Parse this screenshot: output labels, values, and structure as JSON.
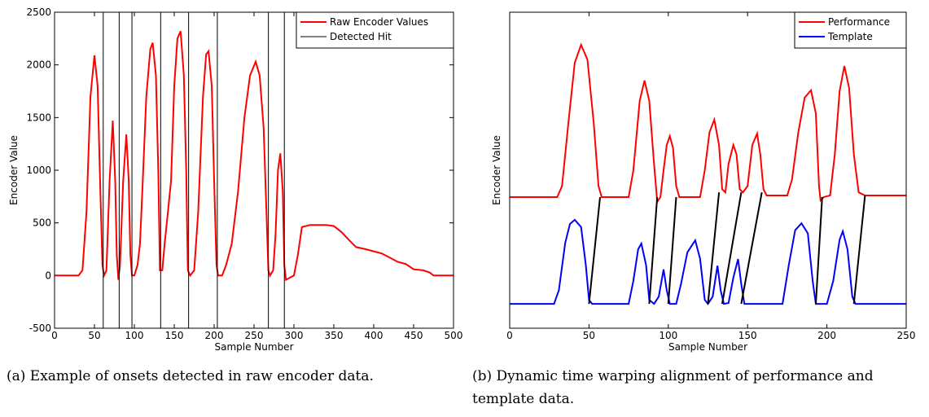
{
  "chart_data": [
    {
      "type": "line",
      "x_label": "Sample Number",
      "y_label": "Encoder Value",
      "caption": "(a) Example of onsets detected in raw encoder data.",
      "xlim": [
        0,
        500
      ],
      "xticks": [
        0,
        50,
        100,
        150,
        200,
        250,
        300,
        350,
        400,
        450,
        500
      ],
      "ylim": [
        -500,
        2500
      ],
      "yticks": [
        -500,
        0,
        500,
        1000,
        1500,
        2000,
        2500
      ],
      "legend": "top-right",
      "series": [
        {
          "name": "Raw Encoder Values",
          "color": "#ff0000",
          "kind": "line",
          "x": [
            0,
            30,
            35,
            40,
            45,
            50,
            54,
            57,
            60,
            62,
            65,
            69,
            73,
            76,
            78,
            80,
            82,
            86,
            90,
            93,
            95,
            97,
            100,
            104,
            107,
            110,
            115,
            120,
            123,
            127,
            130,
            132,
            135,
            138,
            142,
            146,
            150,
            154,
            158,
            162,
            165,
            167,
            170,
            175,
            180,
            186,
            190,
            193,
            197,
            200,
            203,
            205,
            210,
            215,
            222,
            230,
            238,
            245,
            252,
            257,
            262,
            266,
            268,
            270,
            274,
            277,
            280,
            283,
            286,
            288,
            290,
            295,
            300,
            305,
            310,
            320,
            340,
            350,
            360,
            370,
            378,
            390,
            400,
            410,
            420,
            430,
            440,
            450,
            462,
            470,
            475,
            500
          ],
          "values": [
            0,
            0,
            50,
            600,
            1700,
            2090,
            1800,
            900,
            100,
            0,
            50,
            900,
            1470,
            900,
            200,
            -40,
            100,
            900,
            1340,
            900,
            200,
            0,
            0,
            100,
            300,
            800,
            1700,
            2150,
            2210,
            1900,
            1000,
            50,
            50,
            300,
            600,
            900,
            1800,
            2250,
            2320,
            1900,
            1000,
            50,
            0,
            50,
            600,
            1700,
            2100,
            2130,
            1800,
            900,
            100,
            0,
            0,
            100,
            300,
            800,
            1500,
            1900,
            2030,
            1900,
            1400,
            500,
            50,
            0,
            50,
            400,
            1000,
            1160,
            800,
            100,
            -40,
            -20,
            0,
            200,
            460,
            480,
            480,
            470,
            410,
            330,
            270,
            250,
            230,
            210,
            170,
            130,
            110,
            60,
            50,
            30,
            0,
            0
          ]
        },
        {
          "name": "Detected Hit",
          "color": "#000000",
          "kind": "vline",
          "x": [
            61,
            81,
            97,
            133,
            168,
            204,
            268,
            288
          ]
        }
      ]
    },
    {
      "type": "line",
      "x_label": "Sample Number",
      "y_label": "Encoder Value",
      "caption": "(b) Dynamic time warping alignment of performance and template data.",
      "xlim": [
        0,
        250
      ],
      "xticks": [
        0,
        50,
        100,
        150,
        200,
        250
      ],
      "ylim": [
        0,
        100
      ],
      "legend": "top-right",
      "series": [
        {
          "name": "Performance",
          "color": "#ff0000",
          "kind": "line",
          "x": [
            0,
            30,
            33,
            37,
            41,
            45,
            49,
            53,
            56,
            58,
            75,
            78,
            82,
            85,
            88,
            91,
            93,
            95,
            97,
            99,
            101,
            103,
            105,
            107,
            120,
            123,
            126,
            129,
            132,
            134,
            136,
            138,
            141,
            143,
            145,
            147,
            150,
            153,
            156,
            158,
            160,
            162,
            175,
            178,
            182,
            186,
            190,
            193,
            195,
            196,
            198,
            202,
            205,
            208,
            211,
            214,
            217,
            220,
            224,
            250
          ],
          "values": [
            41.5,
            41.5,
            45,
            65,
            84,
            89.7,
            85,
            65,
            45,
            41.5,
            41.5,
            50,
            72,
            78.4,
            72,
            52,
            40,
            41.5,
            50,
            58,
            60.8,
            57,
            45,
            41.5,
            41.5,
            50,
            62,
            66,
            58,
            44,
            43,
            52,
            58,
            55,
            44,
            43,
            45,
            58,
            61.6,
            55,
            44,
            42,
            42,
            47,
            62,
            73,
            75.3,
            68,
            45,
            40.5,
            41.5,
            42,
            55,
            75,
            83,
            76,
            55,
            43,
            42,
            42
          ]
        },
        {
          "name": "Template",
          "color": "#0000ff",
          "kind": "line",
          "x": [
            0,
            28,
            31,
            35,
            38,
            41,
            45,
            48,
            50,
            52,
            75,
            78,
            81,
            83,
            86,
            88,
            91,
            94,
            97,
            99,
            101,
            105,
            108,
            112,
            117,
            120,
            123,
            125,
            128,
            131,
            133,
            135,
            138,
            141,
            144,
            146,
            148,
            172,
            176,
            180,
            184,
            188,
            191,
            193,
            200,
            204,
            208,
            210,
            213,
            216,
            218,
            250
          ],
          "values": [
            7.7,
            7.7,
            12,
            27,
            33,
            34.3,
            32,
            20,
            9,
            7.7,
            7.7,
            15,
            25,
            26.8,
            20,
            9,
            7.7,
            10,
            18.6,
            12,
            7.7,
            7.7,
            14,
            24,
            27.8,
            22,
            9,
            7.7,
            10,
            19.8,
            12,
            7.7,
            8,
            16,
            21.9,
            14,
            7.7,
            7.7,
            20,
            31,
            33.2,
            30,
            15,
            7.7,
            7.7,
            15,
            28,
            30.7,
            25,
            10,
            7.7,
            7.7
          ]
        }
      ],
      "alignment": {
        "color": "#000000",
        "segments": [
          {
            "x": [
              57,
              50
            ],
            "values": [
              41.5,
              7.7
            ]
          },
          {
            "x": [
              93,
              88
            ],
            "values": [
              41.5,
              7.7
            ]
          },
          {
            "x": [
              105,
              100
            ],
            "values": [
              41.5,
              7.7
            ]
          },
          {
            "x": [
              132,
              125
            ],
            "values": [
              43,
              7.7
            ]
          },
          {
            "x": [
              146,
              134
            ],
            "values": [
              43,
              7.7
            ]
          },
          {
            "x": [
              159,
              146
            ],
            "values": [
              43,
              7.7
            ]
          },
          {
            "x": [
              197,
              193
            ],
            "values": [
              41.5,
              7.7
            ]
          },
          {
            "x": [
              224,
              217
            ],
            "values": [
              42,
              7.7
            ]
          }
        ]
      }
    }
  ]
}
